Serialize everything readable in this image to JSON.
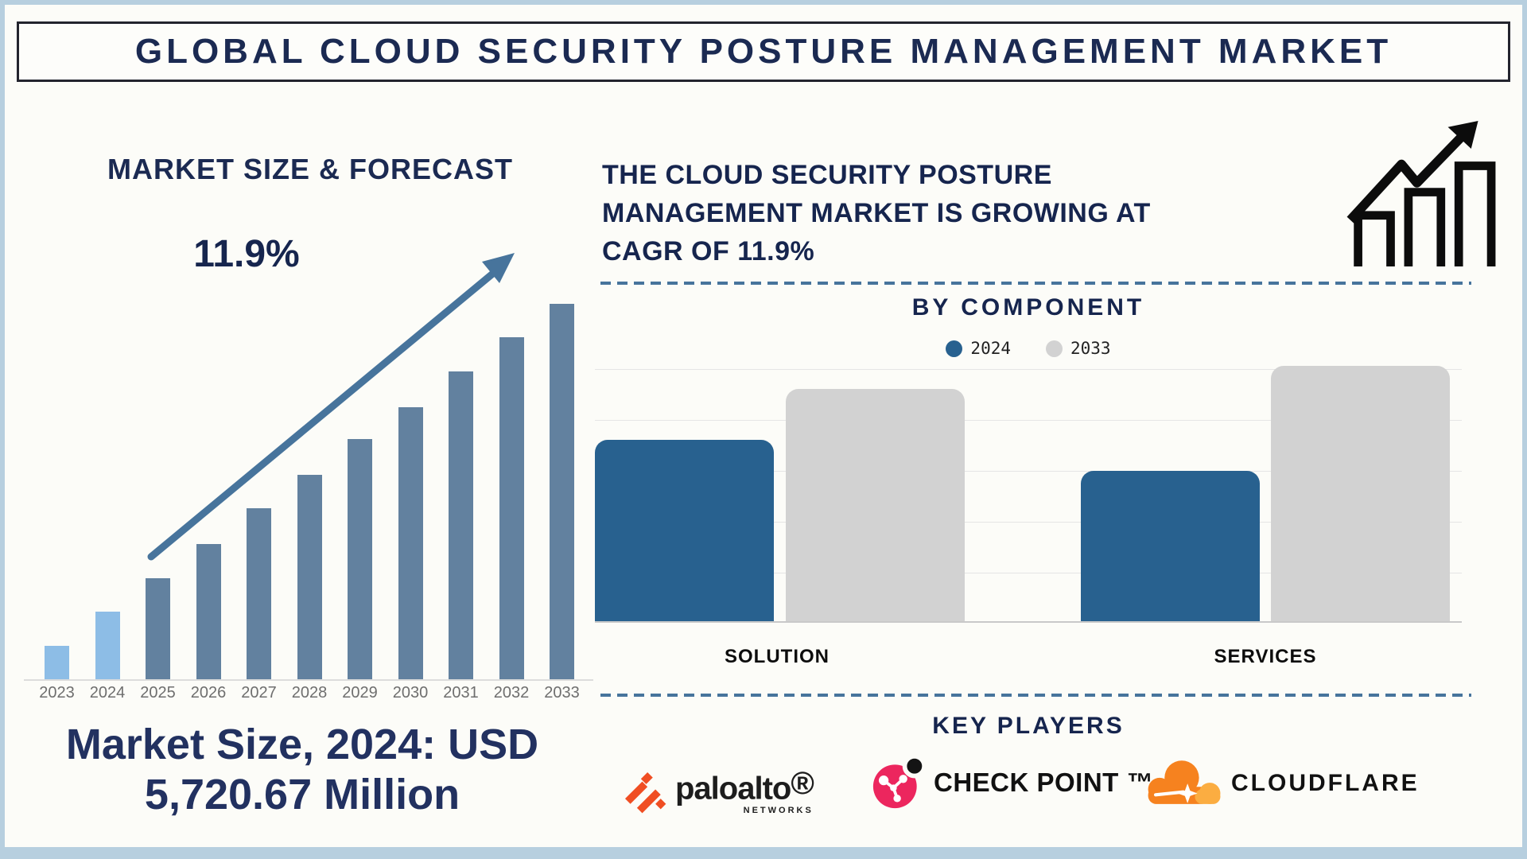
{
  "page": {
    "title": "GLOBAL CLOUD SECURITY POSTURE MANAGEMENT MARKET"
  },
  "left_panel": {
    "chart_title": "MARKET SIZE & FORECAST",
    "cagr_label": "11.9%",
    "callout": {
      "line1": "Market Size, 2024: USD",
      "line2": "5,720.67 Million"
    }
  },
  "right_panel": {
    "heading_lines": [
      "THE CLOUD SECURITY POSTURE",
      "MANAGEMENT MARKET IS GROWING AT",
      "CAGR OF 11.9%"
    ],
    "key_players_title": "KEY PLAYERS",
    "players": [
      {
        "name": "paloalto",
        "registered_mark": "®",
        "subtext": "NETWORKS"
      },
      {
        "name": "CHECK POINT",
        "trademark": "™"
      },
      {
        "name": "CLOUDFLARE"
      }
    ]
  },
  "chart_data": [
    {
      "id": "market_size_forecast",
      "type": "bar",
      "title": "MARKET SIZE & FORECAST",
      "annotation": "11.9% CAGR growth arrow",
      "categories": [
        "2023",
        "2024",
        "2025",
        "2026",
        "2027",
        "2028",
        "2029",
        "2030",
        "2031",
        "2032",
        "2033"
      ],
      "values_pct_of_max": [
        9,
        18,
        27,
        36,
        45.5,
        54.5,
        64,
        72.5,
        82,
        91,
        100
      ],
      "known_value": {
        "year": "2024",
        "value_usd_million": 5720.67
      },
      "bar_color": "#62819f",
      "highlight": {
        "years": [
          "2023",
          "2024"
        ],
        "color": "#8dbde6"
      },
      "grid": false,
      "axis": "x ticks only, no y axis"
    },
    {
      "id": "by_component",
      "type": "bar",
      "title": "BY COMPONENT",
      "categories": [
        "SOLUTION",
        "SERVICES"
      ],
      "series": [
        {
          "name": "2024",
          "color": "#28618f",
          "values_pct_of_max": [
            71,
            59
          ]
        },
        {
          "name": "2033",
          "color": "#d2d2d2",
          "values_pct_of_max": [
            91,
            100
          ]
        }
      ],
      "legend_position": "top",
      "grid": true
    }
  ],
  "colors": {
    "frame_border": "#b7cfdf",
    "background": "#fcfcf8",
    "navy_text": "#1b2a52",
    "arrow_and_dashes": "#47749c",
    "axis_tick_gray": "#6e6e6e",
    "gridline": "#e5e5e5",
    "paloalto_orange": "#f04e23",
    "checkpoint_pink": "#ec265e",
    "cloudflare_orange": "#f6821f",
    "cloudflare_light_orange": "#fbad41"
  }
}
